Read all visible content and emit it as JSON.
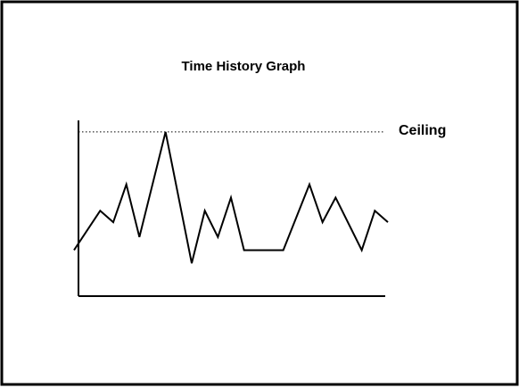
{
  "chart_data": {
    "type": "line",
    "title": "Time History Graph",
    "x": [
      0,
      2,
      3,
      4,
      5,
      7,
      9,
      10,
      11,
      12,
      13,
      16,
      18,
      19,
      20,
      22,
      23,
      24
    ],
    "values": [
      28,
      52,
      45,
      68,
      36,
      100,
      20,
      52,
      36,
      60,
      28,
      28,
      68,
      45,
      60,
      28,
      52,
      45
    ],
    "color": "#000000",
    "xlim": [
      0,
      24
    ],
    "ylim": [
      0,
      107
    ],
    "reference": {
      "label": "Ceiling",
      "value": 100
    }
  }
}
